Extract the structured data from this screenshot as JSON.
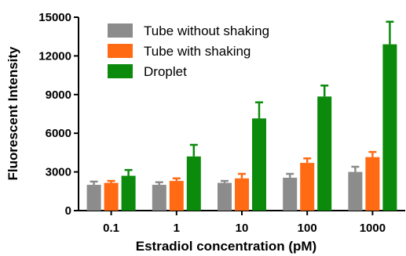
{
  "chart_data": {
    "type": "bar",
    "title": "",
    "xlabel": "Estradiol concentration (pM)",
    "ylabel": "Fluorescent Intensity",
    "ylim": [
      0,
      15000
    ],
    "yticks": [
      0,
      3000,
      6000,
      9000,
      12000,
      15000
    ],
    "categories": [
      "0.1",
      "1",
      "10",
      "100",
      "1000"
    ],
    "series": [
      {
        "name": "Tube without shaking",
        "color": "#8c8c8c",
        "values": [
          2000,
          2000,
          2150,
          2550,
          3000
        ],
        "error": [
          250,
          200,
          150,
          300,
          400
        ]
      },
      {
        "name": "Tube with shaking",
        "color": "#ff6a13",
        "values": [
          2150,
          2300,
          2500,
          3700,
          4150
        ],
        "error": [
          150,
          200,
          350,
          350,
          400
        ]
      },
      {
        "name": "Droplet",
        "color": "#0b8a0b",
        "values": [
          2700,
          4200,
          7150,
          8850,
          12900
        ],
        "error": [
          450,
          900,
          1250,
          850,
          1750
        ]
      }
    ],
    "legend_position": "top-left",
    "error_bars": true,
    "grid": false
  }
}
